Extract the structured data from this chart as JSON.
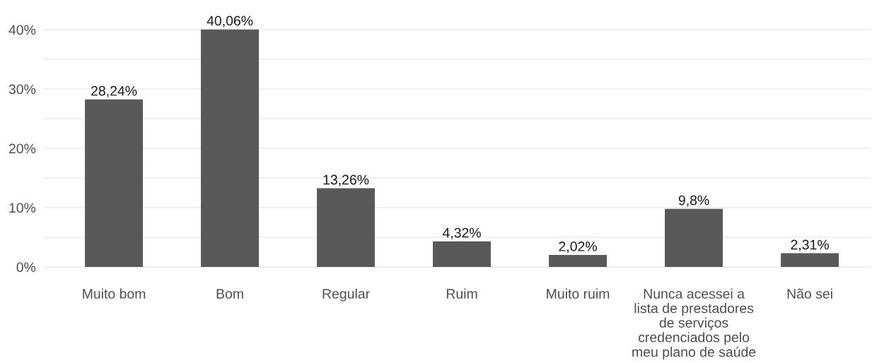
{
  "chart_data": {
    "type": "bar",
    "categories": [
      "Muito bom",
      "Bom",
      "Regular",
      "Ruim",
      "Muito ruim",
      "Nunca acessei a\nlista de prestadores\nde serviços\ncredenciados pelo\nmeu plano de saúde",
      "Não sei"
    ],
    "values": [
      28.24,
      40.06,
      13.26,
      4.32,
      2.02,
      9.8,
      2.31
    ],
    "value_labels": [
      "28,24%",
      "40,06%",
      "13,26%",
      "4,32%",
      "2,02%",
      "9,8%",
      "2,31%"
    ],
    "color": "#595959",
    "ylim": [
      0,
      40.06
    ],
    "yticks": [
      {
        "value": 0,
        "label": "0%"
      },
      {
        "value": 5,
        "label": null
      },
      {
        "value": 10,
        "label": "10%"
      },
      {
        "value": 15,
        "label": null
      },
      {
        "value": 20,
        "label": "20%"
      },
      {
        "value": 25,
        "label": null
      },
      {
        "value": 30,
        "label": "30%"
      },
      {
        "value": 35,
        "label": null
      },
      {
        "value": 40,
        "label": "40%"
      }
    ],
    "grid": "y"
  }
}
